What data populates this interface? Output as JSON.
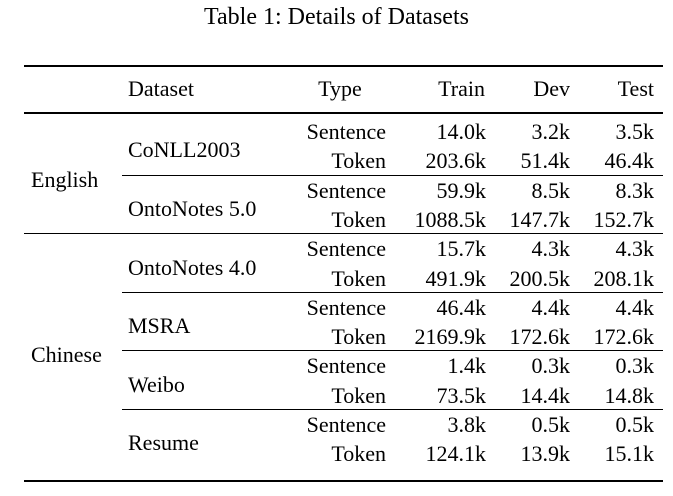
{
  "caption": "Table 1: Details of Datasets",
  "headers": [
    "Dataset",
    "Type",
    "Train",
    "Dev",
    "Test"
  ],
  "groups": [
    {
      "language": "English",
      "datasets": [
        {
          "name": "CoNLL2003",
          "rows": [
            {
              "type": "Sentence",
              "train": "14.0k",
              "dev": "3.2k",
              "test": "3.5k"
            },
            {
              "type": "Token",
              "train": "203.6k",
              "dev": "51.4k",
              "test": "46.4k"
            }
          ]
        },
        {
          "name": "OntoNotes 5.0",
          "rows": [
            {
              "type": "Sentence",
              "train": "59.9k",
              "dev": "8.5k",
              "test": "8.3k"
            },
            {
              "type": "Token",
              "train": "1088.5k",
              "dev": "147.7k",
              "test": "152.7k"
            }
          ]
        }
      ]
    },
    {
      "language": "Chinese",
      "datasets": [
        {
          "name": "OntoNotes 4.0",
          "rows": [
            {
              "type": "Sentence",
              "train": "15.7k",
              "dev": "4.3k",
              "test": "4.3k"
            },
            {
              "type": "Token",
              "train": "491.9k",
              "dev": "200.5k",
              "test": "208.1k"
            }
          ]
        },
        {
          "name": "MSRA",
          "rows": [
            {
              "type": "Sentence",
              "train": "46.4k",
              "dev": "4.4k",
              "test": "4.4k"
            },
            {
              "type": "Token",
              "train": "2169.9k",
              "dev": "172.6k",
              "test": "172.6k"
            }
          ]
        },
        {
          "name": "Weibo",
          "rows": [
            {
              "type": "Sentence",
              "train": "1.4k",
              "dev": "0.3k",
              "test": "0.3k"
            },
            {
              "type": "Token",
              "train": "73.5k",
              "dev": "14.4k",
              "test": "14.8k"
            }
          ]
        },
        {
          "name": "Resume",
          "rows": [
            {
              "type": "Sentence",
              "train": "3.8k",
              "dev": "0.5k",
              "test": "0.5k"
            },
            {
              "type": "Token",
              "train": "124.1k",
              "dev": "13.9k",
              "test": "15.1k"
            }
          ]
        }
      ]
    }
  ]
}
